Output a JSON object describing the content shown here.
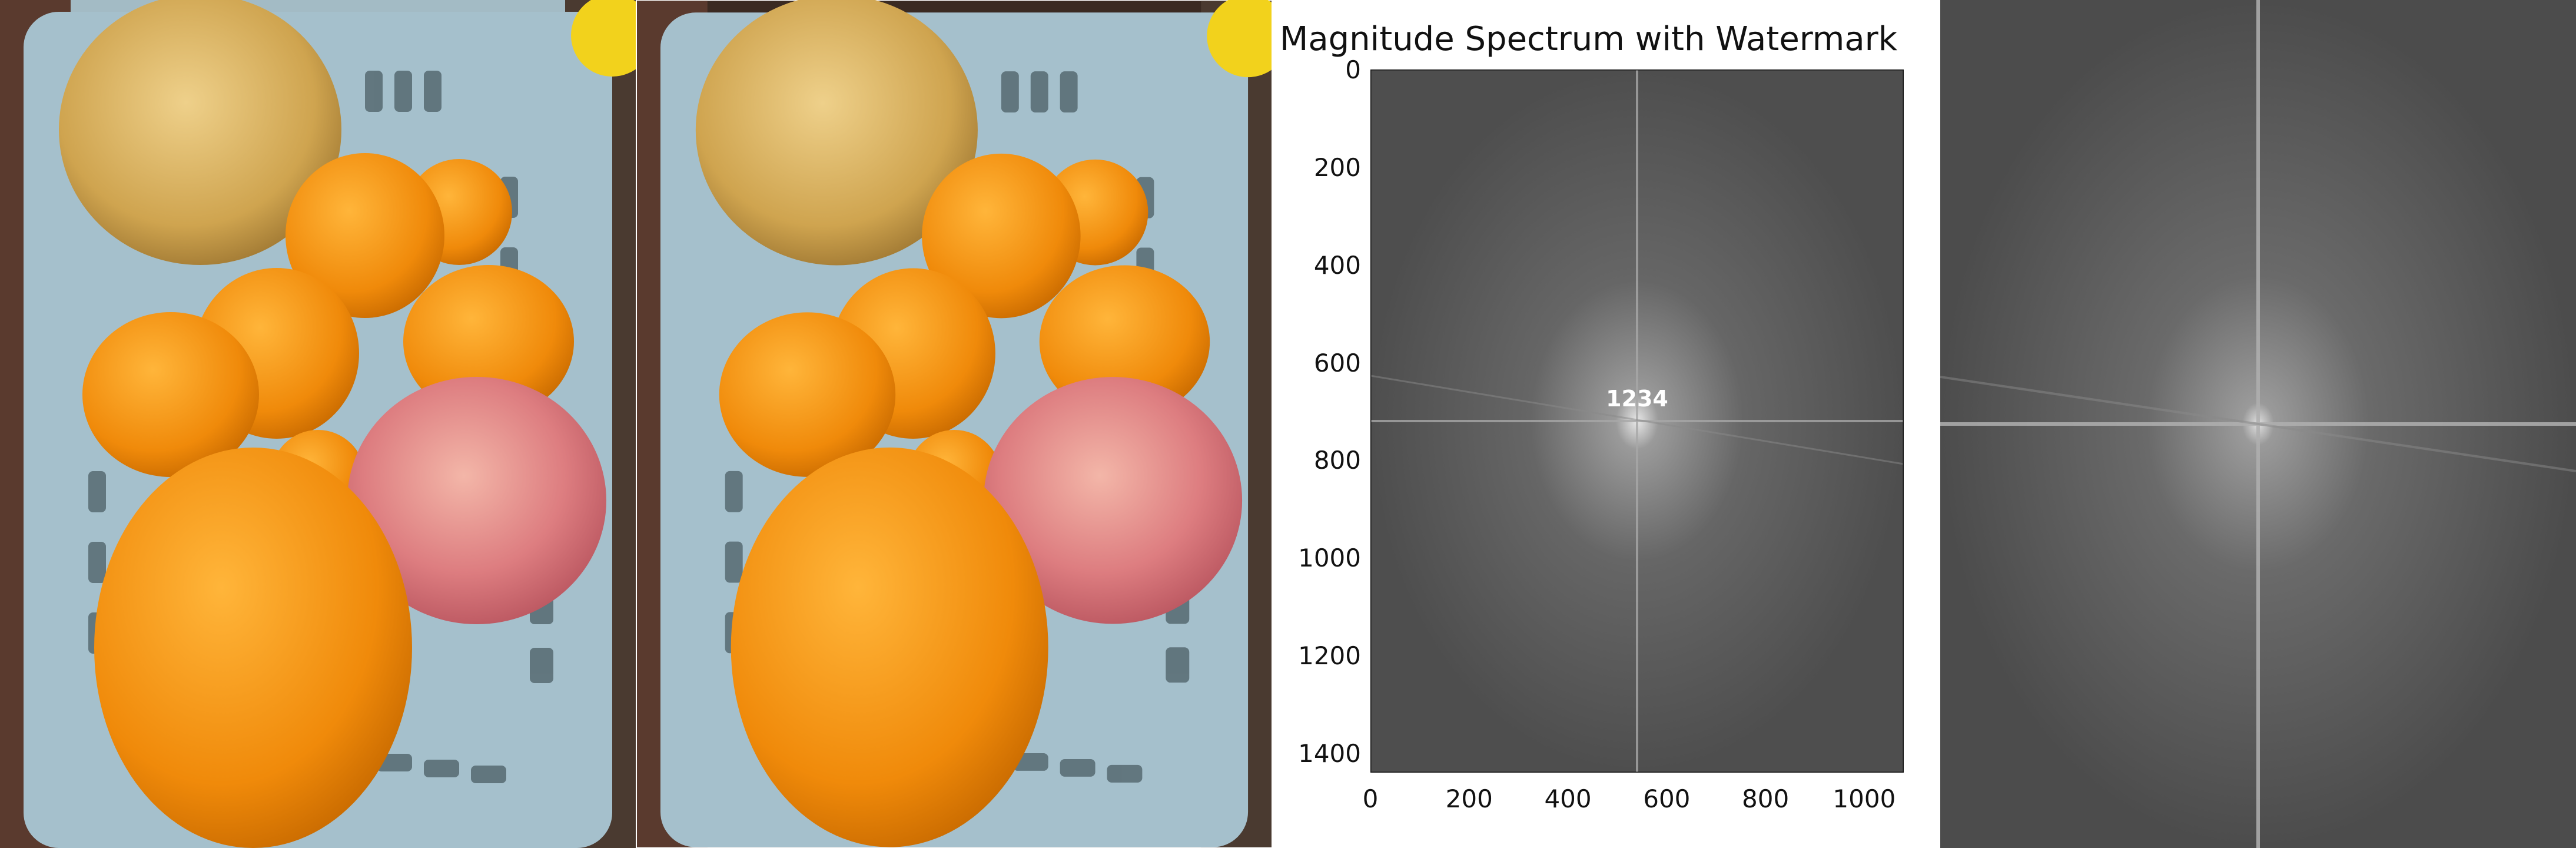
{
  "panels": [
    {
      "role": "original-photo"
    },
    {
      "role": "watermarked-photo"
    },
    {
      "role": "magnitude-spectrum-with-watermark",
      "title": "Magnitude Spectrum with Watermark",
      "watermark_text": "1234",
      "y_ticks": [
        "0",
        "200",
        "400",
        "600",
        "800",
        "1000",
        "1200",
        "1400"
      ],
      "x_ticks": [
        "0",
        "200",
        "400",
        "600",
        "800",
        "1000"
      ],
      "y_range": [
        0,
        1440
      ],
      "x_range": [
        0,
        1080
      ]
    },
    {
      "role": "spectrum-closeup"
    }
  ],
  "colors": {
    "basket": "#a9c3cf",
    "orange": "#f39a12",
    "apple": "#d9777b",
    "pear": "#d8b45c",
    "spectrum_bg": "#545454"
  }
}
